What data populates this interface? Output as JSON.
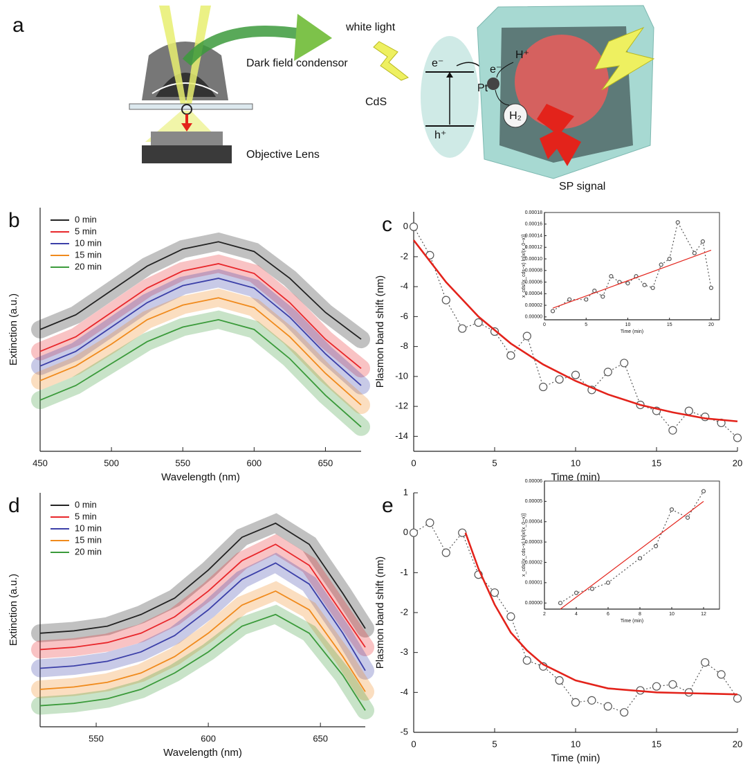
{
  "diagram": {
    "label": "a",
    "white_light": "white light",
    "condensor": "Dark field condensor",
    "objective": "Objective Lens",
    "cds": "CdS",
    "electron": "e⁻",
    "hole": "h⁺",
    "pt": "Pt",
    "pt_electron": "e⁻",
    "proton": "H⁺",
    "hydrogen": "H₂",
    "sp_signal": "SP signal"
  },
  "chart_data": [
    {
      "type": "line",
      "label": "b",
      "xlabel": "Wavelength (nm)",
      "ylabel": "Extinction (a.u.)",
      "xlim": [
        450,
        675
      ],
      "xticks": [
        450,
        500,
        550,
        600,
        650
      ],
      "ylim": [
        0,
        10
      ],
      "legend": "upper left",
      "series": [
        {
          "name": "0 min",
          "color": "#222222",
          "x": [
            450,
            475,
            500,
            525,
            550,
            575,
            600,
            625,
            650,
            675
          ],
          "values": [
            5.0,
            5.6,
            6.6,
            7.6,
            8.3,
            8.6,
            8.2,
            7.1,
            5.7,
            4.6
          ]
        },
        {
          "name": "5 min",
          "color": "#e8262a",
          "x": [
            450,
            475,
            500,
            525,
            550,
            575,
            600,
            625,
            650,
            675
          ],
          "values": [
            4.1,
            4.7,
            5.7,
            6.7,
            7.4,
            7.7,
            7.3,
            6.1,
            4.6,
            3.4
          ]
        },
        {
          "name": "10 min",
          "color": "#3b3fa8",
          "x": [
            450,
            475,
            500,
            525,
            550,
            575,
            600,
            625,
            650,
            675
          ],
          "values": [
            3.5,
            4.1,
            5.1,
            6.1,
            6.8,
            7.1,
            6.7,
            5.5,
            4.0,
            2.7
          ]
        },
        {
          "name": "15 min",
          "color": "#f08a1c",
          "x": [
            450,
            475,
            500,
            525,
            550,
            575,
            600,
            625,
            650,
            675
          ],
          "values": [
            2.9,
            3.5,
            4.4,
            5.4,
            6.0,
            6.3,
            5.9,
            4.7,
            3.2,
            1.9
          ]
        },
        {
          "name": "20 min",
          "color": "#3a9a3a",
          "x": [
            450,
            475,
            500,
            525,
            550,
            575,
            600,
            625,
            650,
            675
          ],
          "values": [
            2.1,
            2.7,
            3.6,
            4.5,
            5.1,
            5.4,
            5.0,
            3.8,
            2.3,
            1.0
          ]
        }
      ]
    },
    {
      "type": "scatter",
      "label": "c",
      "xlabel": "Time (min)",
      "ylabel": "Plasmon band shift (nm)",
      "xlim": [
        0,
        20
      ],
      "xticks": [
        0,
        5,
        10,
        15,
        20
      ],
      "ylim": [
        -15,
        1
      ],
      "yticks": [
        0,
        -2,
        -4,
        -6,
        -8,
        -10,
        -12,
        -14
      ],
      "series": [
        {
          "color": "#555555",
          "marker": "circle",
          "x": [
            0,
            1,
            2,
            3,
            4,
            5,
            6,
            7,
            8,
            9,
            10,
            11,
            12,
            13,
            14,
            15,
            16,
            17,
            18,
            19,
            20
          ],
          "values": [
            0,
            -1.9,
            -4.9,
            -6.8,
            -6.4,
            -7.0,
            -8.6,
            -7.3,
            -10.7,
            -10.2,
            -9.9,
            -10.9,
            -9.7,
            -9.1,
            -11.9,
            -12.3,
            -13.6,
            -12.3,
            -12.7,
            -13.1,
            -14.1
          ]
        },
        {
          "color": "#e3231b",
          "x": [
            0,
            2,
            4,
            6,
            8,
            10,
            12,
            14,
            16,
            18,
            20
          ],
          "values": [
            -0.9,
            -3.7,
            -6.0,
            -7.8,
            -9.2,
            -10.3,
            -11.2,
            -11.9,
            -12.4,
            -12.8,
            -13.0
          ]
        }
      ],
      "inset": {
        "xlabel": "Time (min)",
        "ylabel": "x_cds/(x_cds−x) ln[x/(x_0−x)]",
        "xlim": [
          0,
          21
        ],
        "xticks": [
          0,
          5,
          10,
          15,
          20
        ],
        "ylim": [
          -5e-06,
          0.00018
        ],
        "yticks": [
          {
            "value": 0,
            "label": "0.00000"
          },
          {
            "value": 2e-05,
            "label": "0.00002"
          },
          {
            "value": 4e-05,
            "label": "0.00004"
          },
          {
            "value": 6e-05,
            "label": "0.00006"
          },
          {
            "value": 8e-05,
            "label": "0.00008"
          },
          {
            "value": 0.0001,
            "label": "0.00010"
          },
          {
            "value": 0.00012,
            "label": "0.00012"
          },
          {
            "value": 0.00014,
            "label": "0.00014"
          },
          {
            "value": 0.00016,
            "label": "0.00016"
          },
          {
            "value": 0.00018,
            "label": "0.00018"
          }
        ],
        "series": [
          {
            "color": "#555555",
            "marker": "circle",
            "x": [
              1,
              3,
              5,
              6,
              7,
              8,
              9,
              10,
              11,
              12,
              13,
              14,
              15,
              16,
              18,
              19,
              20
            ],
            "values": [
              1e-05,
              3e-05,
              3e-05,
              4.5e-05,
              3.5e-05,
              7e-05,
              6e-05,
              5.8e-05,
              7e-05,
              5.5e-05,
              5e-05,
              9e-05,
              0.0001,
              0.000163,
              0.00011,
              0.00013,
              5e-05
            ]
          },
          {
            "color": "#e3231b",
            "x": [
              1,
              20
            ],
            "values": [
              1.5e-05,
              0.000115
            ]
          }
        ]
      }
    },
    {
      "type": "line",
      "label": "d",
      "xlabel": "Wavelength (nm)",
      "ylabel": "Extinction (a.u.)",
      "xlim": [
        525,
        670
      ],
      "xticks": [
        550,
        600,
        650
      ],
      "ylim": [
        0,
        10
      ],
      "legend": "upper left",
      "series": [
        {
          "name": "0 min",
          "color": "#222222",
          "x": [
            525,
            540,
            555,
            570,
            585,
            600,
            615,
            630,
            645,
            660,
            670
          ],
          "values": [
            4.0,
            4.1,
            4.3,
            4.8,
            5.5,
            6.7,
            8.1,
            8.7,
            7.8,
            5.7,
            4.2
          ]
        },
        {
          "name": "5 min",
          "color": "#e8262a",
          "x": [
            525,
            540,
            555,
            570,
            585,
            600,
            615,
            630,
            645,
            660,
            670
          ],
          "values": [
            3.3,
            3.4,
            3.6,
            4.0,
            4.7,
            5.8,
            7.1,
            7.8,
            6.9,
            4.8,
            3.4
          ]
        },
        {
          "name": "10 min",
          "color": "#3b3fa8",
          "x": [
            525,
            540,
            555,
            570,
            585,
            600,
            615,
            630,
            645,
            660,
            670
          ],
          "values": [
            2.5,
            2.6,
            2.8,
            3.2,
            3.9,
            5.0,
            6.3,
            7.0,
            6.1,
            4.0,
            2.4
          ]
        },
        {
          "name": "15 min",
          "color": "#f08a1c",
          "x": [
            525,
            540,
            555,
            570,
            585,
            600,
            615,
            630,
            645,
            660,
            670
          ],
          "values": [
            1.6,
            1.7,
            1.9,
            2.3,
            3.0,
            4.0,
            5.2,
            5.8,
            5.0,
            3.0,
            1.5
          ]
        },
        {
          "name": "20 min",
          "color": "#3a9a3a",
          "x": [
            525,
            540,
            555,
            570,
            585,
            600,
            615,
            630,
            645,
            660,
            670
          ],
          "values": [
            0.9,
            1.0,
            1.2,
            1.6,
            2.3,
            3.2,
            4.3,
            4.8,
            4.0,
            2.2,
            0.7
          ]
        }
      ]
    },
    {
      "type": "scatter",
      "label": "e",
      "xlabel": "Time (min)",
      "ylabel": "Plasmon band shift (nm)",
      "xlim": [
        0,
        20
      ],
      "xticks": [
        0,
        5,
        10,
        15,
        20
      ],
      "ylim": [
        -5,
        1
      ],
      "yticks": [
        1,
        0,
        -1,
        -2,
        -3,
        -4,
        -5
      ],
      "series": [
        {
          "color": "#555555",
          "marker": "circle",
          "x": [
            0,
            1,
            2,
            3,
            4,
            5,
            6,
            7,
            8,
            9,
            10,
            11,
            12,
            13,
            14,
            15,
            16,
            17,
            18,
            19,
            20
          ],
          "values": [
            0,
            0.25,
            -0.5,
            0,
            -1.05,
            -1.5,
            -2.1,
            -3.2,
            -3.35,
            -3.7,
            -4.25,
            -4.2,
            -4.35,
            -4.5,
            -3.95,
            -3.85,
            -3.8,
            -4.0,
            -3.25,
            -3.55,
            -4.15
          ]
        },
        {
          "color": "#e3231b",
          "x": [
            3.2,
            4,
            5,
            6,
            7,
            8,
            10,
            12,
            15,
            20
          ],
          "values": [
            0,
            -0.9,
            -1.8,
            -2.5,
            -2.95,
            -3.3,
            -3.7,
            -3.9,
            -4.0,
            -4.05
          ]
        }
      ],
      "inset": {
        "xlabel": "Time (min)",
        "ylabel": "x_cds/(x_cds−x) ln[x/(x_0−x)]",
        "xlim": [
          2,
          13
        ],
        "xticks": [
          2,
          4,
          6,
          8,
          10,
          12
        ],
        "ylim": [
          -3e-06,
          6e-05
        ],
        "yticks": [
          {
            "value": 0,
            "label": "0.00000"
          },
          {
            "value": 1e-05,
            "label": "0.00001"
          },
          {
            "value": 2e-05,
            "label": "0.00002"
          },
          {
            "value": 3e-05,
            "label": "0.00003"
          },
          {
            "value": 4e-05,
            "label": "0.00004"
          },
          {
            "value": 5e-05,
            "label": "0.00005"
          },
          {
            "value": 6e-05,
            "label": "0.00006"
          }
        ],
        "series": [
          {
            "color": "#555555",
            "marker": "circle",
            "x": [
              3,
              4,
              5,
              6,
              8,
              9,
              10,
              11,
              12
            ],
            "values": [
              0,
              5e-06,
              7e-06,
              1e-05,
              2.2e-05,
              2.8e-05,
              4.6e-05,
              4.2e-05,
              5.5e-05
            ]
          },
          {
            "color": "#e3231b",
            "x": [
              3,
              12
            ],
            "values": [
              -3e-06,
              5e-05
            ]
          }
        ]
      }
    }
  ]
}
